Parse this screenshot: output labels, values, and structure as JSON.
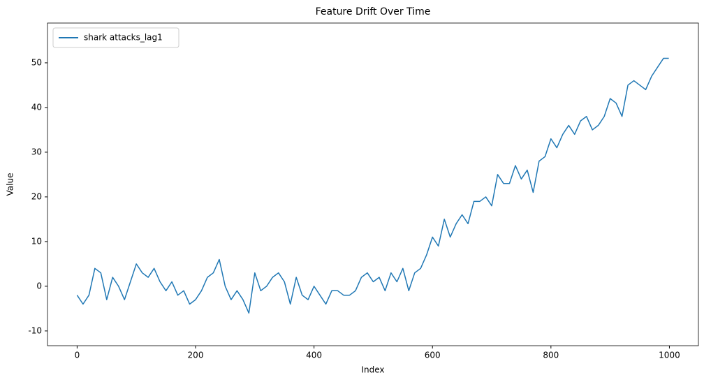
{
  "chart_data": {
    "type": "line",
    "title": "Feature Drift Over Time",
    "x_label": "Index",
    "y_label": "Value",
    "legend": "upper left",
    "x": [
      0,
      10,
      20,
      30,
      40,
      50,
      60,
      70,
      80,
      90,
      100,
      110,
      120,
      130,
      140,
      150,
      160,
      170,
      180,
      190,
      200,
      210,
      220,
      230,
      240,
      250,
      260,
      270,
      280,
      290,
      300,
      310,
      320,
      330,
      340,
      350,
      360,
      370,
      380,
      390,
      400,
      410,
      420,
      430,
      440,
      450,
      460,
      470,
      480,
      490,
      500,
      510,
      520,
      530,
      540,
      550,
      560,
      570,
      580,
      590,
      600,
      610,
      620,
      630,
      640,
      650,
      660,
      670,
      680,
      690,
      700,
      710,
      720,
      730,
      740,
      750,
      760,
      770,
      780,
      790,
      800,
      810,
      820,
      830,
      840,
      850,
      860,
      870,
      880,
      890,
      900,
      910,
      920,
      930,
      940,
      950,
      960,
      970,
      980,
      990,
      999
    ],
    "series": [
      {
        "name": "shark attacks_lag1",
        "color": "#1f77b4",
        "values": [
          -2,
          -4,
          -2,
          4,
          3,
          -3,
          2,
          0,
          -3,
          1,
          5,
          3,
          2,
          4,
          1,
          -1,
          1,
          -2,
          -1,
          -4,
          -3,
          -1,
          2,
          3,
          6,
          0,
          -3,
          -1,
          -3,
          -6,
          3,
          -1,
          0,
          2,
          3,
          1,
          -4,
          2,
          -2,
          -3,
          0,
          -2,
          -4,
          -1,
          -1,
          -2,
          -2,
          -1,
          2,
          3,
          1,
          2,
          -1,
          3,
          1,
          4,
          -1,
          3,
          4,
          7,
          11,
          9,
          15,
          11,
          14,
          16,
          14,
          19,
          19,
          20,
          18,
          25,
          23,
          23,
          27,
          24,
          26,
          21,
          28,
          29,
          33,
          31,
          34,
          36,
          34,
          37,
          38,
          35,
          36,
          38,
          42,
          41,
          38,
          45,
          46,
          45,
          44,
          47,
          49,
          51,
          51
        ]
      }
    ],
    "xlim": [
      -50,
      1049
    ],
    "ylim": [
      -13.3,
      58.9
    ],
    "xticks": [
      0,
      200,
      400,
      600,
      800,
      1000
    ],
    "yticks": [
      -10,
      0,
      10,
      20,
      30,
      40,
      50
    ]
  }
}
